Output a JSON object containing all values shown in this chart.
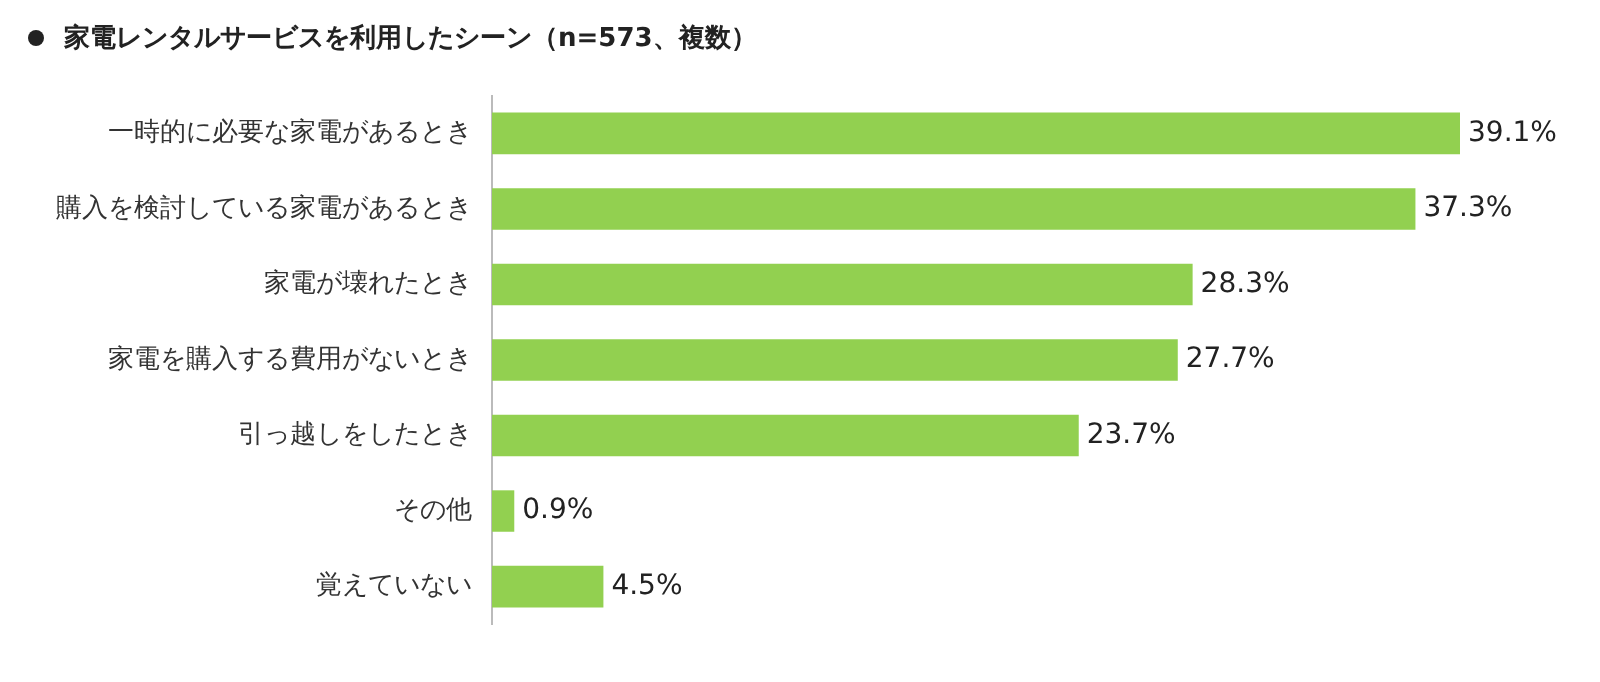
{
  "chart_data": {
    "type": "bar",
    "orientation": "horizontal",
    "title": "家電レンタルサービスを利用したシーン（n=573、複数）",
    "categories": [
      "一時的に必要な家電があるとき",
      "購入を検討している家電があるとき",
      "家電が壊れたとき",
      "家電を購入する費用がないとき",
      "引っ越しをしたとき",
      "その他",
      "覚えていない"
    ],
    "values": [
      39.1,
      37.3,
      28.3,
      27.7,
      23.7,
      0.9,
      4.5
    ],
    "value_labels": [
      "39.1%",
      "37.3%",
      "28.3%",
      "27.7%",
      "23.7%",
      "0.9%",
      "4.5%"
    ],
    "color": "#92d050"
  }
}
